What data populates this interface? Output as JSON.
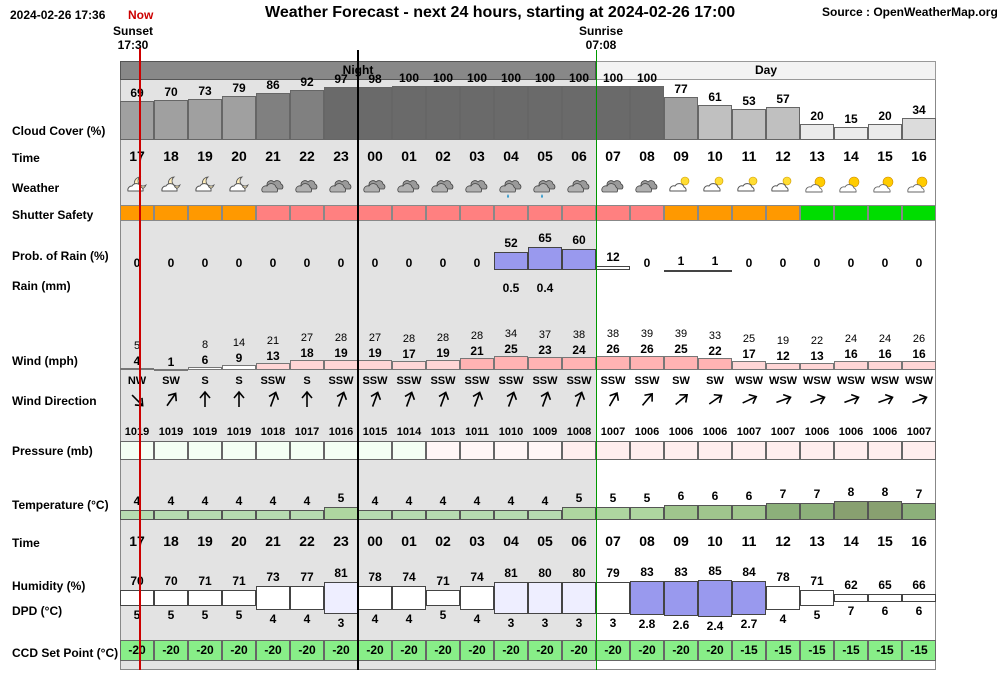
{
  "header": {
    "timestamp": "2024-02-26 17:36",
    "now_label": "Now",
    "title": "Weather Forecast - next 24 hours, starting at 2024-02-26 17:00",
    "source": "Source : OpenWeatherMap.org"
  },
  "sun": {
    "sunset_label": "Sunset",
    "sunset_time": "17:30",
    "sunrise_label": "Sunrise",
    "sunrise_time": "07:08"
  },
  "periods": {
    "night": "Night",
    "day": "Day"
  },
  "row_labels": {
    "cloud": "Cloud Cover (%)",
    "time": "Time",
    "weather": "Weather",
    "shutter": "Shutter Safety",
    "prob_rain": "Prob. of Rain (%)",
    "rain": "Rain (mm)",
    "wind": "Wind (mph)",
    "wind_dir": "Wind Direction",
    "pressure": "Pressure (mb)",
    "temperature": "Temperature (°C)",
    "time2": "Time",
    "humidity": "Humidity (%)",
    "dpd": "DPD (°C)",
    "ccd": "CCD Set Point (°C)"
  },
  "colors": {
    "night_bg": "#e3e3e3",
    "shutter_orange": "#ff9900",
    "shutter_red": "#ff8080",
    "shutter_green": "#00dd00",
    "rain_blue": "#9999ee",
    "ccd_green": "#88ee88",
    "now_red": "#cc0000",
    "day_border": "#009900"
  },
  "chart_data": {
    "type": "table",
    "hours": [
      "17",
      "18",
      "19",
      "20",
      "21",
      "22",
      "23",
      "00",
      "01",
      "02",
      "03",
      "04",
      "05",
      "06",
      "07",
      "08",
      "09",
      "10",
      "11",
      "12",
      "13",
      "14",
      "15",
      "16"
    ],
    "night_hours": [
      "17",
      "18",
      "19",
      "20",
      "21",
      "22",
      "23",
      "00",
      "01",
      "02",
      "03",
      "04",
      "05",
      "06"
    ],
    "cloud_cover": [
      69,
      70,
      73,
      79,
      86,
      92,
      97,
      98,
      100,
      100,
      100,
      100,
      100,
      100,
      100,
      100,
      77,
      61,
      53,
      57,
      20,
      15,
      20,
      34
    ],
    "weather_icons": [
      "partly-cloudy-night-icon",
      "partly-cloudy-night-icon",
      "partly-cloudy-night-icon",
      "partly-cloudy-night-icon",
      "cloudy-icon",
      "cloudy-icon",
      "cloudy-icon",
      "cloudy-icon",
      "cloudy-icon",
      "cloudy-icon",
      "cloudy-icon",
      "light-rain-icon",
      "light-rain-icon",
      "cloudy-icon",
      "cloudy-icon",
      "cloudy-icon",
      "partly-cloudy-day-icon",
      "partly-cloudy-day-icon",
      "partly-cloudy-day-icon",
      "partly-cloudy-day-icon",
      "sunny-partly-cloudy-icon",
      "sunny-partly-cloudy-icon",
      "sunny-partly-cloudy-icon",
      "sunny-partly-cloudy-icon"
    ],
    "shutter_safety": [
      "orange",
      "orange",
      "orange",
      "orange",
      "red",
      "red",
      "red",
      "red",
      "red",
      "red",
      "red",
      "red",
      "red",
      "red",
      "red",
      "red",
      "orange",
      "orange",
      "orange",
      "orange",
      "green",
      "green",
      "green",
      "green"
    ],
    "prob_rain": [
      0,
      0,
      0,
      0,
      0,
      0,
      0,
      0,
      0,
      0,
      0,
      52,
      65,
      60,
      12,
      0,
      1,
      1,
      0,
      0,
      0,
      0,
      0,
      0
    ],
    "rain_mm": [
      "",
      "",
      "",
      "",
      "",
      "",
      "",
      "",
      "",
      "",
      "",
      "0.5",
      "0.4",
      "",
      "",
      "",
      "",
      "",
      "",
      "",
      "",
      "",
      "",
      ""
    ],
    "wind_gust": [
      5,
      "",
      8,
      14,
      21,
      27,
      28,
      27,
      28,
      28,
      28,
      34,
      37,
      38,
      38,
      39,
      39,
      33,
      25,
      19,
      22,
      24,
      24,
      26
    ],
    "wind_speed": [
      4,
      1,
      6,
      9,
      13,
      18,
      19,
      19,
      17,
      19,
      21,
      25,
      23,
      24,
      26,
      26,
      25,
      22,
      17,
      12,
      13,
      16,
      16,
      16
    ],
    "wind_direction": [
      "NW",
      "SW",
      "S",
      "S",
      "SSW",
      "S",
      "SSW",
      "SSW",
      "SSW",
      "SSW",
      "SSW",
      "SSW",
      "SSW",
      "SSW",
      "SSW",
      "SSW",
      "SW",
      "SW",
      "WSW",
      "WSW",
      "WSW",
      "WSW",
      "WSW",
      "WSW"
    ],
    "wind_angle_deg": [
      135,
      35,
      0,
      0,
      20,
      0,
      20,
      20,
      20,
      20,
      20,
      20,
      20,
      20,
      30,
      40,
      50,
      55,
      65,
      70,
      70,
      70,
      70,
      70
    ],
    "pressure_mb": [
      1019,
      1019,
      1019,
      1019,
      1018,
      1017,
      1016,
      1015,
      1014,
      1013,
      1011,
      1010,
      1009,
      1008,
      1007,
      1006,
      1006,
      1006,
      1007,
      1007,
      1006,
      1006,
      1006,
      1007
    ],
    "temperature_c": [
      4,
      4,
      4,
      4,
      4,
      4,
      5,
      4,
      4,
      4,
      4,
      4,
      4,
      5,
      5,
      5,
      6,
      6,
      6,
      7,
      7,
      8,
      8,
      7
    ],
    "humidity_pct": [
      70,
      70,
      71,
      71,
      73,
      77,
      81,
      78,
      74,
      71,
      74,
      81,
      80,
      80,
      79,
      83,
      83,
      85,
      84,
      78,
      71,
      62,
      65,
      66
    ],
    "dpd_c": [
      5,
      5,
      5,
      5,
      4,
      4,
      3,
      4,
      4,
      5,
      4,
      3,
      3,
      3,
      3,
      2.8,
      2.6,
      2.4,
      2.7,
      4,
      5,
      7,
      6,
      6
    ],
    "ccd_set_point_c": [
      -20,
      -20,
      -20,
      -20,
      -20,
      -20,
      -20,
      -20,
      -20,
      -20,
      -20,
      -20,
      -20,
      -20,
      -20,
      -20,
      -20,
      -20,
      -15,
      -15,
      -15,
      -15,
      -15,
      -15
    ]
  }
}
